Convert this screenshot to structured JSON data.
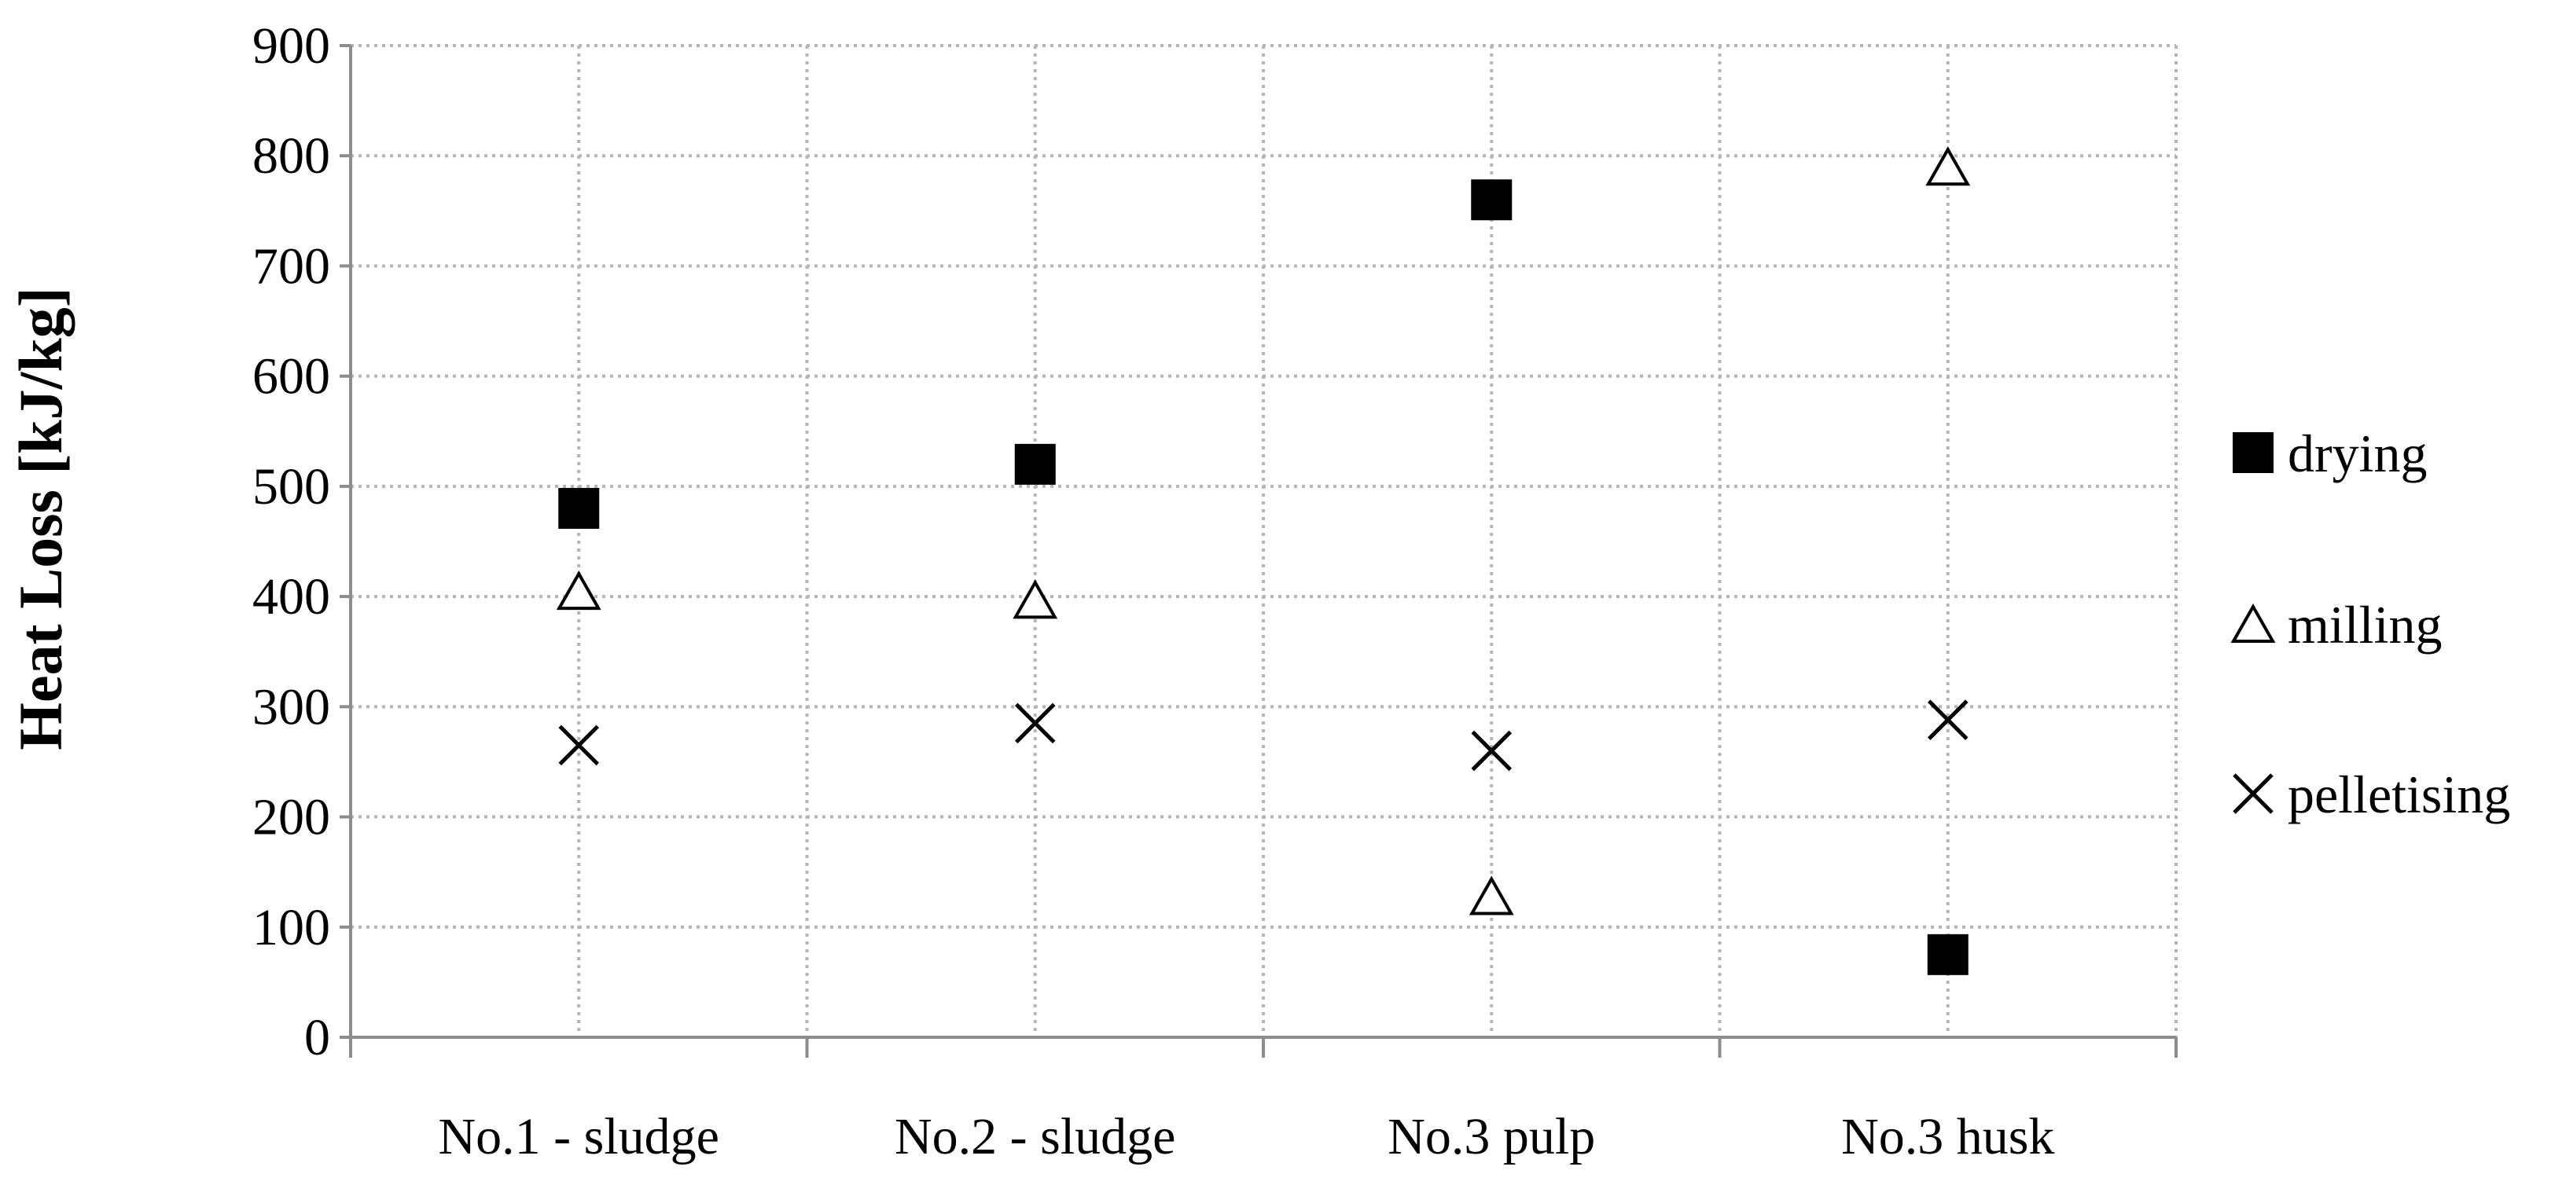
{
  "chart_data": {
    "type": "scatter",
    "title": "",
    "xlabel": "",
    "ylabel": "Heat Loss [kJ/kg]",
    "ylim": [
      0,
      900
    ],
    "yticks": [
      0,
      100,
      200,
      300,
      400,
      500,
      600,
      700,
      800,
      900
    ],
    "categories": [
      "No.1 - sludge",
      "No.2 - sludge",
      "No.3 pulp",
      "No.3 husk"
    ],
    "grid": "horizontal dotted",
    "legend_position": "right",
    "series": [
      {
        "name": "drying",
        "marker": "filled-square",
        "color": "#000000",
        "values": [
          480,
          520,
          760,
          75
        ]
      },
      {
        "name": "milling",
        "marker": "open-triangle",
        "color": "#000000",
        "values": [
          405,
          397,
          128,
          790
        ]
      },
      {
        "name": "pelletising",
        "marker": "x",
        "color": "#000000",
        "values": [
          265,
          285,
          260,
          288
        ]
      }
    ]
  }
}
